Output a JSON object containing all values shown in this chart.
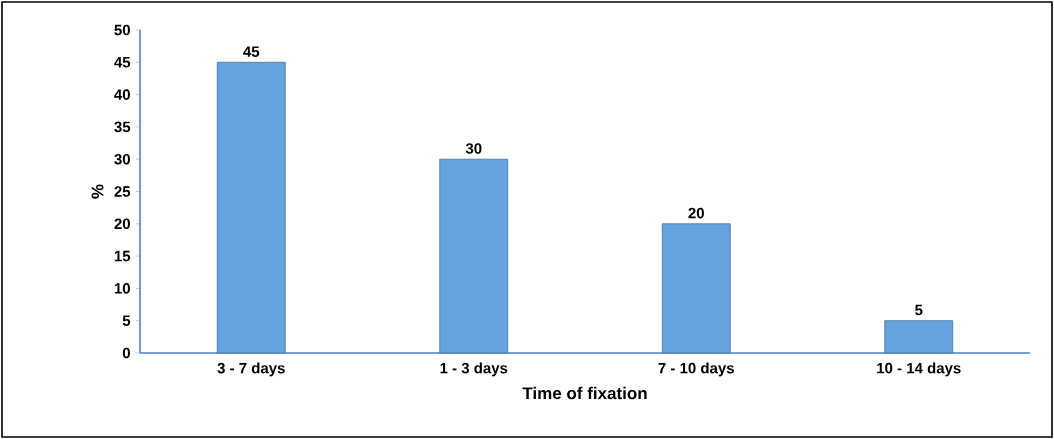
{
  "chart_data": {
    "type": "bar",
    "xlabel": "Time of fixation",
    "ylabel": "%",
    "categories": [
      "3 - 7 days",
      "1 - 3 days",
      "7 - 10 days",
      "10 - 14 days"
    ],
    "values": [
      45,
      30,
      20,
      5
    ],
    "color": "#62a3e0",
    "ylim": [
      0,
      50
    ],
    "yticks": [
      0,
      5,
      10,
      15,
      20,
      25,
      30,
      35,
      40,
      45,
      50
    ],
    "data_labels": true,
    "grid": false
  }
}
